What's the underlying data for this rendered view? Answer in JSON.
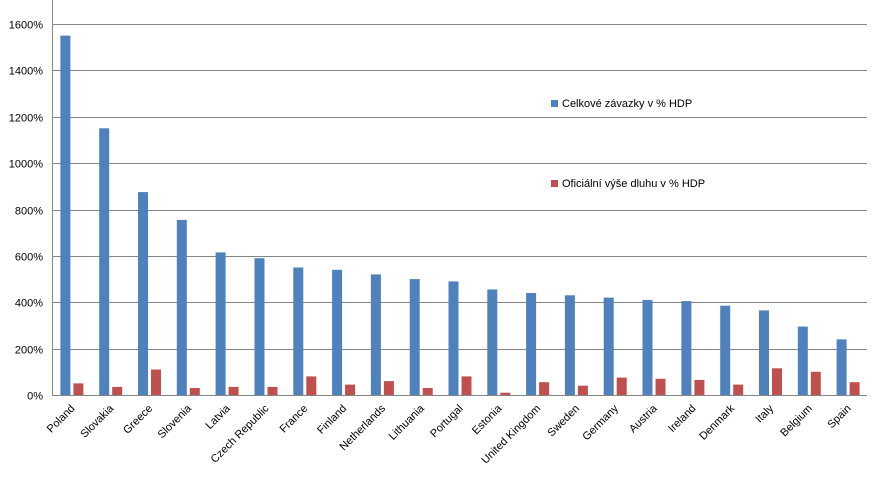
{
  "chart_data": {
    "type": "bar",
    "categories": [
      "Poland",
      "Slovakia",
      "Greece",
      "Slovenia",
      "Latvia",
      "Czech Republic",
      "France",
      "Finland",
      "Netherlands",
      "Lithuania",
      "Portugal",
      "Estonia",
      "United Kingdom",
      "Sweden",
      "Germany",
      "Austria",
      "Ireland",
      "Denmark",
      "Italy",
      "Belgium",
      "Spain"
    ],
    "series": [
      {
        "name": "Celkové závazky v % HDP",
        "color": "#4F81BD",
        "values": [
          1550,
          1150,
          875,
          755,
          615,
          590,
          550,
          540,
          520,
          500,
          490,
          455,
          440,
          430,
          420,
          410,
          405,
          385,
          365,
          295,
          240
        ]
      },
      {
        "name": "Oficiální výše dluhu v % HDP",
        "color": "#C0504D",
        "values": [
          50,
          35,
          110,
          30,
          35,
          35,
          80,
          45,
          60,
          30,
          80,
          10,
          55,
          40,
          75,
          70,
          65,
          45,
          115,
          100,
          55
        ]
      }
    ],
    "ylim": [
      0,
      1600
    ],
    "yticks": [
      0,
      200,
      400,
      600,
      800,
      1000,
      1200,
      1400,
      1600
    ],
    "ytick_labels": [
      "0%",
      "200%",
      "400%",
      "600%",
      "800%",
      "1000%",
      "1200%",
      "1400%",
      "1600%"
    ],
    "grid": true,
    "legend": "right"
  }
}
